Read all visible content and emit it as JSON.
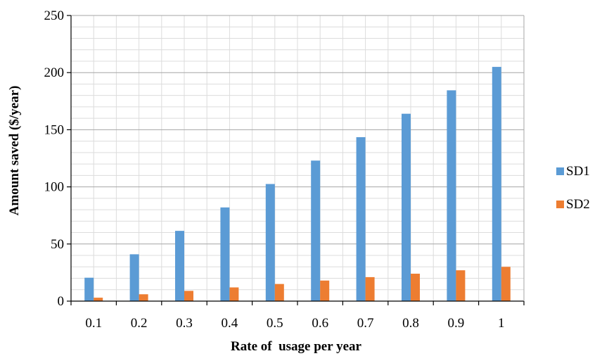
{
  "chart_data": {
    "type": "bar",
    "categories": [
      "0.1",
      "0.2",
      "0.3",
      "0.4",
      "0.5",
      "0.6",
      "0.7",
      "0.8",
      "0.9",
      "1"
    ],
    "series": [
      {
        "name": "SD1",
        "values": [
          20.5,
          41,
          61.5,
          82,
          102.5,
          123,
          143.5,
          164,
          184.5,
          205
        ],
        "color": "#5b9bd5"
      },
      {
        "name": "SD2",
        "values": [
          3,
          6,
          9,
          12,
          15,
          18,
          21,
          24,
          27,
          30
        ],
        "color": "#ed7d31"
      }
    ],
    "xlabel": "Rate of  usage per year",
    "ylabel": "Amount saved ($/year)",
    "ylim": [
      0,
      250
    ],
    "yticks": [
      0,
      50,
      100,
      150,
      200,
      250
    ],
    "grid": true,
    "legend": "right"
  }
}
